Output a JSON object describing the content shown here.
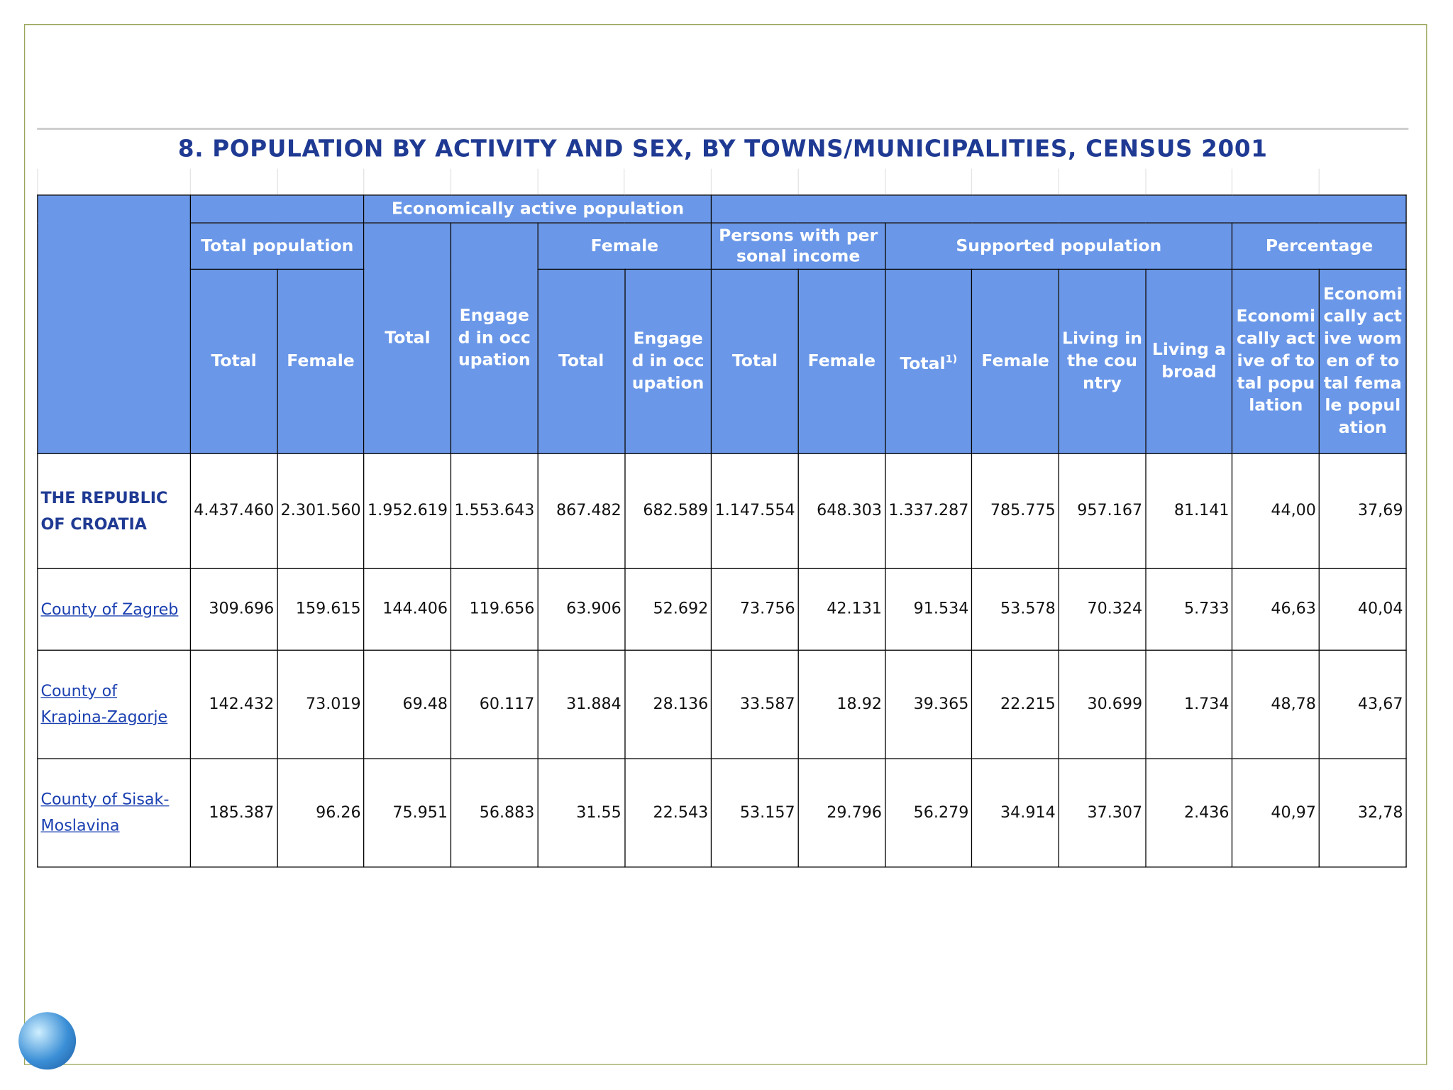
{
  "title": "8. POPULATION BY ACTIVITY AND SEX, BY TOWNS/MUNICIPALITIES, CENSUS 2001",
  "header": {
    "group": "Economically active population",
    "top": [
      "Total population",
      "Female",
      "Persons with personal income",
      "Supported population",
      "Percentage"
    ],
    "columns": [
      {
        "text": "Total"
      },
      {
        "text": "Female"
      },
      {
        "text": "Total"
      },
      {
        "text": "Engaged in occupation"
      },
      {
        "text": "Total"
      },
      {
        "text": "Engaged in occupation"
      },
      {
        "text": "Total"
      },
      {
        "text": "Female"
      },
      {
        "text": "Total",
        "sup": "1)"
      },
      {
        "text": "Female"
      },
      {
        "text": "Living in the country"
      },
      {
        "text": "Living abroad"
      },
      {
        "text": "Economically active of total population"
      },
      {
        "text": "Economically active women of total female population"
      }
    ]
  },
  "rows": [
    {
      "name": "THE REPUBLIC OF CROATIA",
      "cells": [
        "4.437.460",
        "2.301.560",
        "1.952.619",
        "1.553.643",
        "867.482",
        "682.589",
        "1.147.554",
        "648.303",
        "1.337.287",
        "785.775",
        "957.167",
        "81.141",
        "44,00",
        "37,69"
      ]
    },
    {
      "name": "County of Zagreb",
      "cells": [
        "309.696",
        "159.615",
        "144.406",
        "119.656",
        "63.906",
        "52.692",
        "73.756",
        "42.131",
        "91.534",
        "53.578",
        "70.324",
        "5.733",
        "46,63",
        "40,04"
      ]
    },
    {
      "name": "County of Krapina-Zagorje",
      "cells": [
        "142.432",
        "73.019",
        "69.48",
        "60.117",
        "31.884",
        "28.136",
        "33.587",
        "18.92",
        "39.365",
        "22.215",
        "30.699",
        "1.734",
        "48,78",
        "43,67"
      ]
    },
    {
      "name": "County of Sisak-Moslavina",
      "cells": [
        "185.387",
        "96.26",
        "75.951",
        "56.883",
        "31.55",
        "22.543",
        "53.157",
        "29.796",
        "56.279",
        "34.914",
        "37.307",
        "2.436",
        "40,97",
        "32,78"
      ]
    }
  ]
}
